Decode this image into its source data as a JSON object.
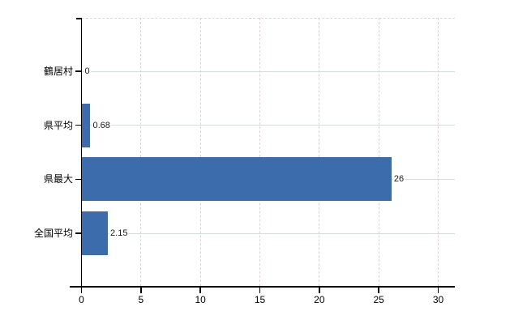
{
  "chart_data": {
    "type": "bar",
    "orientation": "horizontal",
    "title": "",
    "xlabel": "",
    "ylabel": "",
    "legend": "none",
    "grid": "both",
    "categories": [
      "鶴居村",
      "県平均",
      "県最大",
      "全国平均"
    ],
    "values": [
      0,
      0.68,
      26,
      2.15
    ],
    "value_labels": [
      "0",
      "0.68",
      "26",
      "2.15"
    ],
    "x_ticks": [
      "0",
      "5",
      "10",
      "15",
      "20",
      "25",
      "30"
    ],
    "x_tick_values": [
      0,
      5,
      10,
      15,
      20,
      25,
      30
    ],
    "xlim": [
      0,
      31.3
    ],
    "colors": {
      "bar": "#3c6cab",
      "axis": "#000000",
      "h_gridline": "#d5ddd6",
      "v_gridline": "#ddd2da",
      "top_border": "#d8d8d8",
      "value_text": "#1a1a1a",
      "tick_text": "#000000",
      "background": "#ffffff"
    }
  }
}
